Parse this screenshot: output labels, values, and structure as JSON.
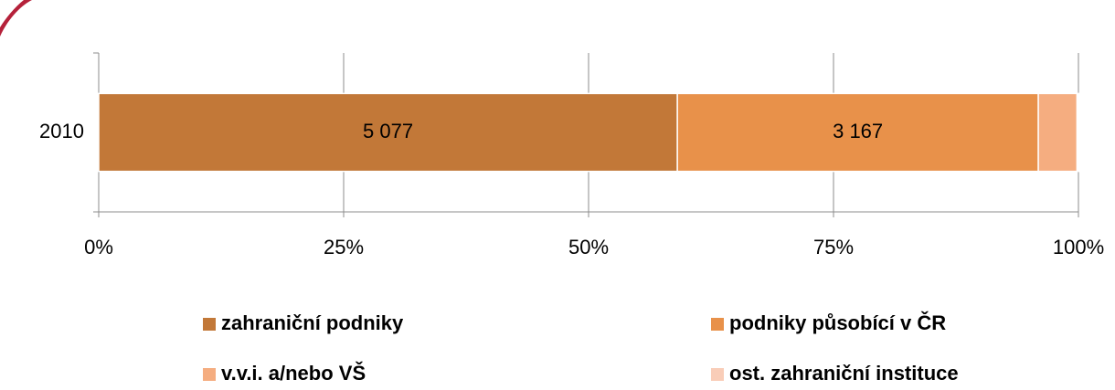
{
  "chart_data": {
    "type": "bar",
    "orientation": "horizontal",
    "stack": "percent",
    "categories": [
      "2010"
    ],
    "series": [
      {
        "name": "zahraniční podniky",
        "color": "#c27838",
        "values": [
          5077
        ],
        "value_labels": [
          "5 077"
        ]
      },
      {
        "name": "podniky působící v ČR",
        "color": "#e8914a",
        "values": [
          3167
        ],
        "value_labels": [
          "3 167"
        ]
      },
      {
        "name": "v.v.i. a/nebo VŠ",
        "color": "#f5ad80",
        "values": [
          340
        ]
      },
      {
        "name": "ost. zahraniční instituce",
        "color": "#f9cdb8",
        "values": [
          12
        ]
      }
    ],
    "xlim": [
      0,
      100
    ],
    "xticks": [
      {
        "value": 0,
        "label": "0%"
      },
      {
        "value": 25,
        "label": "25%"
      },
      {
        "value": 50,
        "label": "50%"
      },
      {
        "value": 75,
        "label": "75%"
      },
      {
        "value": 100,
        "label": "100%"
      }
    ],
    "grid": true,
    "legend": "bottom"
  }
}
